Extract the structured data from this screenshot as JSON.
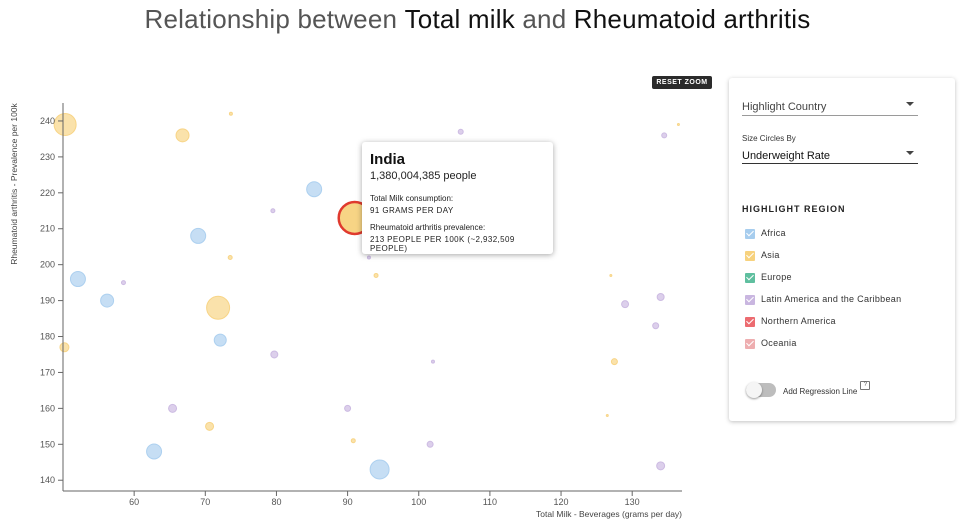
{
  "title": {
    "part1": "Relationship between ",
    "var1": "Total milk",
    "part2": " and ",
    "var2": "Rheumatoid arthritis"
  },
  "reset_zoom_label": "RESET ZOOM",
  "tooltip": {
    "country": "India",
    "population": "1,380,004,385 people",
    "label1": "Total Milk consumption:",
    "value1": "91 GRAMS PER DAY",
    "label2": "Rheumatoid arthritis prevalence:",
    "value2": "213 PEOPLE PER 100K (~2,932,509 PEOPLE)"
  },
  "panel": {
    "highlight_country": {
      "placeholder": "Highlight Country"
    },
    "size_by": {
      "label": "Size Circles By",
      "value": "Underweight Rate"
    },
    "region_title": "HIGHLIGHT REGION",
    "regions": [
      {
        "label": "Africa",
        "color": "#a7cdee"
      },
      {
        "label": "Asia",
        "color": "#f7d27e"
      },
      {
        "label": "Europe",
        "color": "#5fbf9f"
      },
      {
        "label": "Latin America and the Caribbean",
        "color": "#c9b6e0"
      },
      {
        "label": "Northern America",
        "color": "#ec6b70"
      },
      {
        "label": "Oceania",
        "color": "#eeaeb0"
      }
    ],
    "regression_label": "Add Regression Line",
    "regression_on": false,
    "help_icon_glyph": "?"
  },
  "chart_data": {
    "type": "scatter",
    "title": "Relationship between Total milk and Rheumatoid arthritis",
    "xlabel": "Total Milk - Beverages (grams per day)",
    "ylabel": "Rheumatoid arthritis - Prevalence per 100k",
    "xlim": [
      50,
      137
    ],
    "ylim": [
      137,
      245
    ],
    "xticks": [
      60,
      70,
      80,
      90,
      100,
      110,
      120,
      130
    ],
    "yticks": [
      140,
      150,
      160,
      170,
      180,
      190,
      200,
      210,
      220,
      230,
      240
    ],
    "grid": false,
    "size_by": "Underweight Rate",
    "points": [
      {
        "x": 50.3,
        "y": 239,
        "region": "Asia",
        "size": 11
      },
      {
        "x": 66.8,
        "y": 236,
        "region": "Asia",
        "size": 6.5
      },
      {
        "x": 73.6,
        "y": 242,
        "region": "Asia",
        "size": 1.5
      },
      {
        "x": 85.3,
        "y": 221,
        "region": "Africa",
        "size": 7.5
      },
      {
        "x": 69,
        "y": 208,
        "region": "Africa",
        "size": 7.5
      },
      {
        "x": 91,
        "y": 213,
        "region": "Asia",
        "size": 16,
        "highlighted": true,
        "country": "India"
      },
      {
        "x": 79.5,
        "y": 215,
        "region": "Latin America and the Caribbean",
        "size": 2
      },
      {
        "x": 73.5,
        "y": 202,
        "region": "Asia",
        "size": 2
      },
      {
        "x": 52.1,
        "y": 196,
        "region": "Africa",
        "size": 7.5
      },
      {
        "x": 58.5,
        "y": 195,
        "region": "Latin America and the Caribbean",
        "size": 2
      },
      {
        "x": 56.2,
        "y": 190,
        "region": "Africa",
        "size": 6.5
      },
      {
        "x": 71.8,
        "y": 188,
        "region": "Asia",
        "size": 11.5
      },
      {
        "x": 72.1,
        "y": 179,
        "region": "Africa",
        "size": 6
      },
      {
        "x": 50.2,
        "y": 177,
        "region": "Asia",
        "size": 4.5
      },
      {
        "x": 79.7,
        "y": 175,
        "region": "Latin America and the Caribbean",
        "size": 3.5
      },
      {
        "x": 94,
        "y": 197,
        "region": "Asia",
        "size": 2
      },
      {
        "x": 93,
        "y": 202,
        "region": "Latin America and the Caribbean",
        "size": 1.5
      },
      {
        "x": 105.9,
        "y": 237,
        "region": "Latin America and the Caribbean",
        "size": 2.5
      },
      {
        "x": 134.5,
        "y": 236,
        "region": "Latin America and the Caribbean",
        "size": 2.5
      },
      {
        "x": 136.5,
        "y": 239,
        "region": "Asia",
        "size": 1
      },
      {
        "x": 127,
        "y": 197,
        "region": "Asia",
        "size": 1
      },
      {
        "x": 129,
        "y": 189,
        "region": "Latin America and the Caribbean",
        "size": 3.5
      },
      {
        "x": 134,
        "y": 191,
        "region": "Latin America and the Caribbean",
        "size": 3.5
      },
      {
        "x": 133.3,
        "y": 183,
        "region": "Latin America and the Caribbean",
        "size": 3
      },
      {
        "x": 127.5,
        "y": 173,
        "region": "Asia",
        "size": 3
      },
      {
        "x": 102,
        "y": 173,
        "region": "Latin America and the Caribbean",
        "size": 1.5
      },
      {
        "x": 90,
        "y": 160,
        "region": "Latin America and the Caribbean",
        "size": 3
      },
      {
        "x": 65.4,
        "y": 160,
        "region": "Latin America and the Caribbean",
        "size": 4
      },
      {
        "x": 70.6,
        "y": 155,
        "region": "Asia",
        "size": 4
      },
      {
        "x": 62.8,
        "y": 148,
        "region": "Africa",
        "size": 7.5
      },
      {
        "x": 90.8,
        "y": 151,
        "region": "Asia",
        "size": 2
      },
      {
        "x": 101.6,
        "y": 150,
        "region": "Latin America and the Caribbean",
        "size": 3
      },
      {
        "x": 94.5,
        "y": 143,
        "region": "Africa",
        "size": 9.5
      },
      {
        "x": 126.5,
        "y": 158,
        "region": "Asia",
        "size": 1
      },
      {
        "x": 134,
        "y": 144,
        "region": "Latin America and the Caribbean",
        "size": 4
      }
    ]
  }
}
